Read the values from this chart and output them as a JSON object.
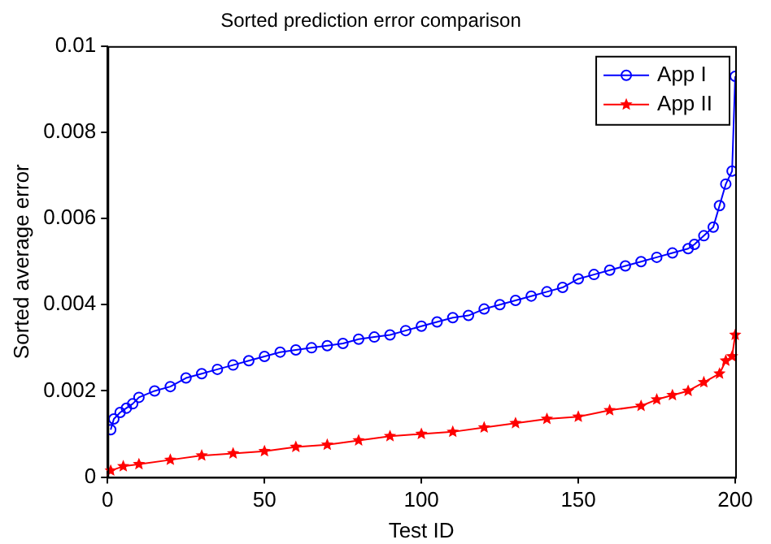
{
  "chart_data": {
    "type": "line",
    "title": "Sorted prediction error comparison",
    "xlabel": "Test ID",
    "ylabel": "Sorted average error",
    "xlim": [
      0,
      200
    ],
    "xticks": [
      0,
      50,
      100,
      150,
      200
    ],
    "ylim": [
      0,
      0.01
    ],
    "yticks": [
      0,
      0.002,
      0.004,
      0.006,
      0.008,
      0.01
    ],
    "grid": false,
    "legend": "top right",
    "line_style": "solid",
    "series": [
      {
        "name": "App I",
        "color": "#0000ff",
        "marker": "circle",
        "x": [
          1,
          2,
          4,
          6,
          8,
          10,
          15,
          20,
          25,
          30,
          35,
          40,
          45,
          50,
          55,
          60,
          65,
          70,
          75,
          80,
          85,
          90,
          95,
          100,
          105,
          110,
          115,
          120,
          125,
          130,
          135,
          140,
          145,
          150,
          155,
          160,
          165,
          170,
          175,
          180,
          185,
          187,
          190,
          193,
          195,
          197,
          199,
          200
        ],
        "values": [
          0.0011,
          0.00135,
          0.0015,
          0.0016,
          0.0017,
          0.00185,
          0.002,
          0.0021,
          0.0023,
          0.0024,
          0.0025,
          0.0026,
          0.0027,
          0.0028,
          0.0029,
          0.00295,
          0.003,
          0.00305,
          0.0031,
          0.0032,
          0.00325,
          0.0033,
          0.0034,
          0.0035,
          0.0036,
          0.0037,
          0.00375,
          0.0039,
          0.004,
          0.0041,
          0.0042,
          0.0043,
          0.0044,
          0.0046,
          0.0047,
          0.0048,
          0.0049,
          0.005,
          0.0051,
          0.0052,
          0.0053,
          0.0054,
          0.0056,
          0.0058,
          0.0063,
          0.0068,
          0.0071,
          0.0093
        ]
      },
      {
        "name": "App II",
        "color": "#ff0000",
        "marker": "star",
        "x": [
          1,
          5,
          10,
          20,
          30,
          40,
          50,
          60,
          70,
          80,
          90,
          100,
          110,
          120,
          130,
          140,
          150,
          160,
          170,
          175,
          180,
          185,
          190,
          195,
          197,
          199,
          200
        ],
        "values": [
          0.00015,
          0.00025,
          0.0003,
          0.0004,
          0.0005,
          0.00055,
          0.0006,
          0.0007,
          0.00075,
          0.00085,
          0.00095,
          0.001,
          0.00105,
          0.00115,
          0.00125,
          0.00135,
          0.0014,
          0.00155,
          0.00165,
          0.0018,
          0.0019,
          0.002,
          0.0022,
          0.0024,
          0.0027,
          0.0028,
          0.0033
        ]
      }
    ]
  }
}
